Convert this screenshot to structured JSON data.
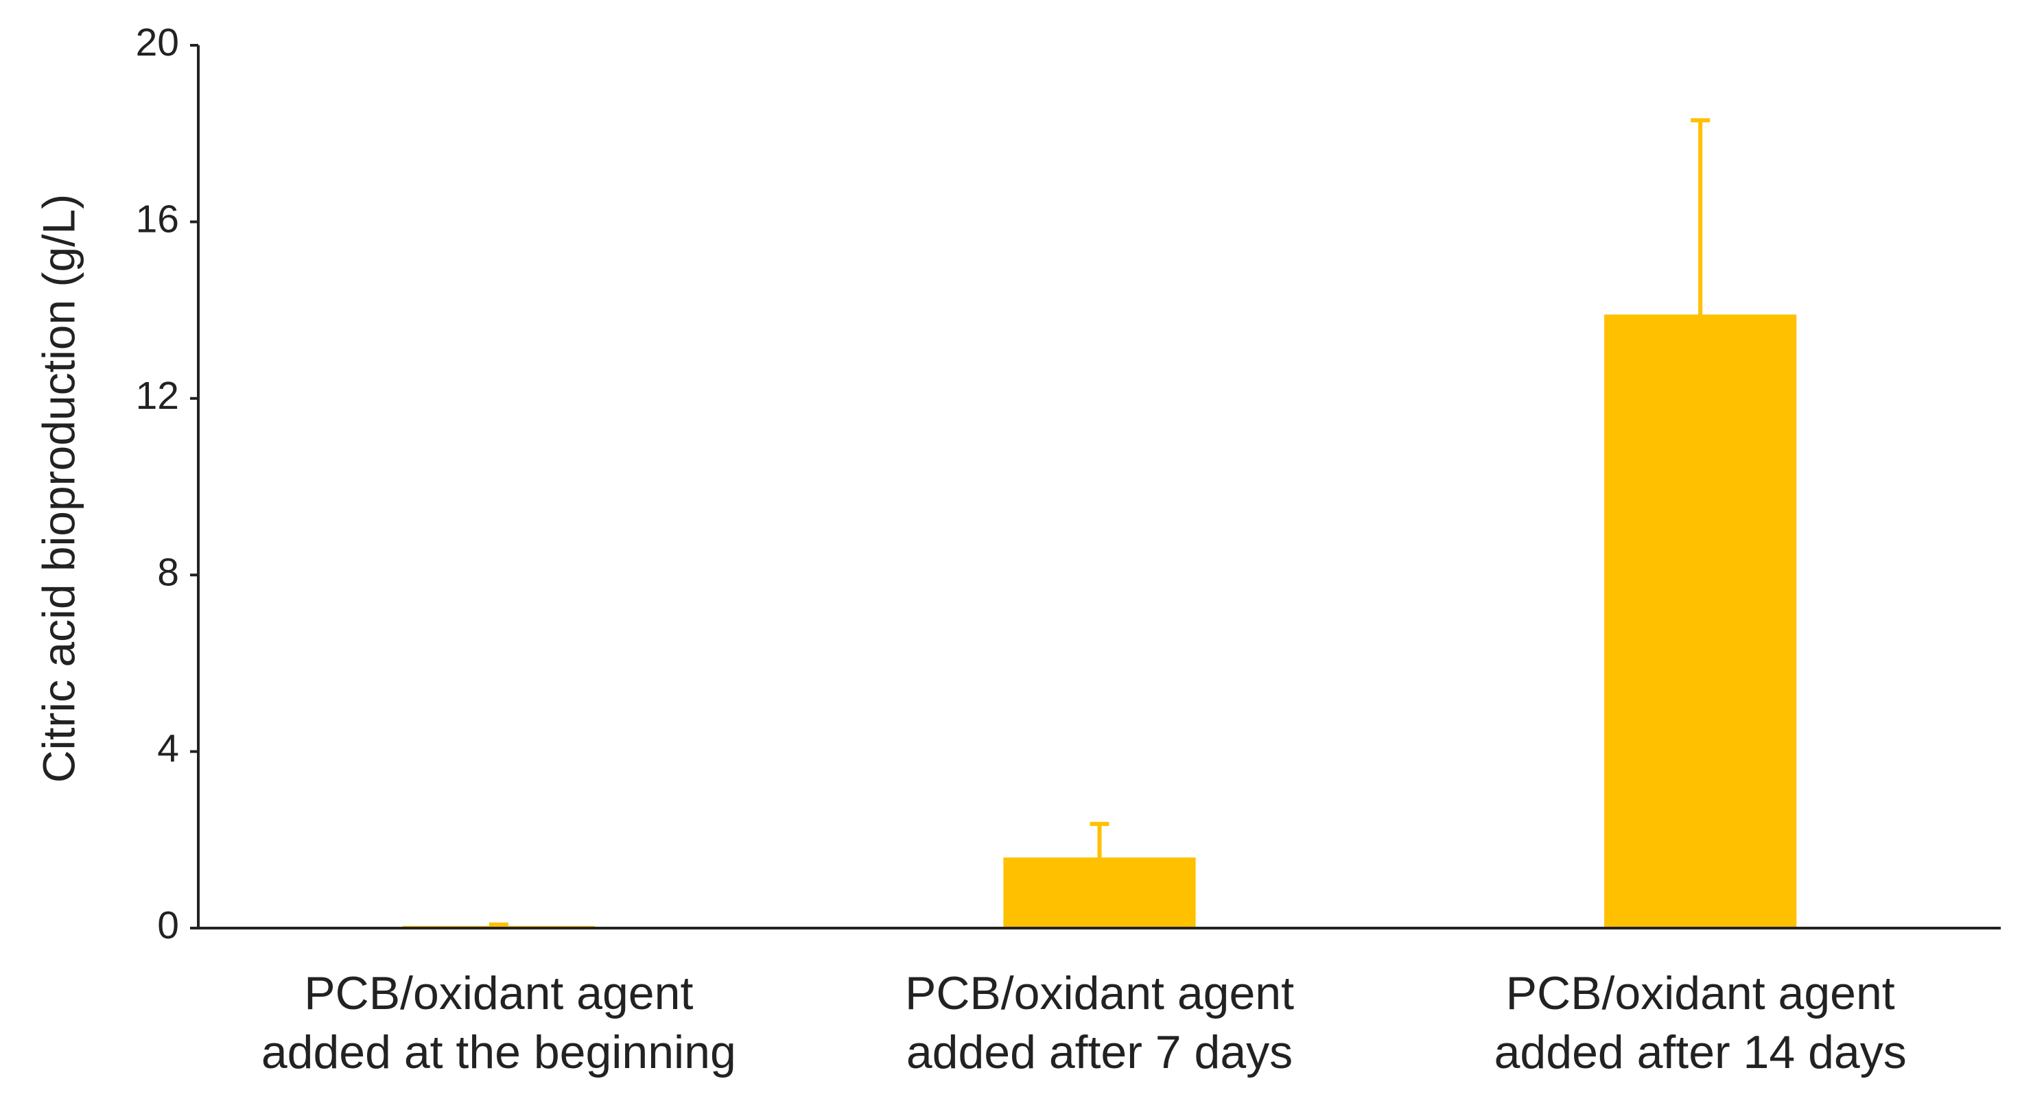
{
  "chart_data": {
    "type": "bar",
    "y_label": "Citric acid bioproduction (g/L)",
    "categories": [
      [
        "PCB/oxidant agent",
        "added at the beginning"
      ],
      [
        "PCB/oxidant agent",
        "added after 7 days"
      ],
      [
        "PCB/oxidant agent",
        "added after 14 days"
      ]
    ],
    "values": [
      0.05,
      1.6,
      13.9
    ],
    "errors": [
      0.03,
      0.76,
      4.4
    ],
    "color": "#FFC000",
    "ylim": [
      0,
      20
    ],
    "yticks": [
      0,
      4,
      8,
      12,
      16,
      20
    ],
    "grid": false
  }
}
